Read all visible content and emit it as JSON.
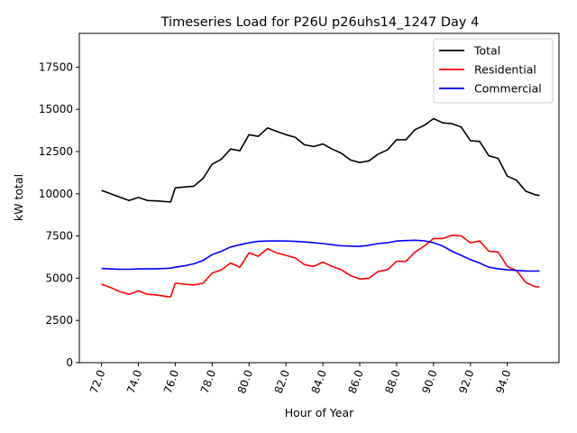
{
  "chart_data": {
    "type": "line",
    "title": "Timeseries Load for P26U p26uhs14_1247  Day 4",
    "xlabel": "Hour of Year",
    "ylabel": "kW total",
    "xlim": [
      70.8,
      96.8
    ],
    "ylim": [
      0,
      19500
    ],
    "xticks": [
      72,
      74,
      76,
      78,
      80,
      82,
      84,
      86,
      88,
      90,
      92,
      94
    ],
    "xtick_labels": [
      "72.0",
      "74.0",
      "76.0",
      "78.0",
      "80.0",
      "82.0",
      "84.0",
      "86.0",
      "88.0",
      "90.0",
      "92.0",
      "94.0"
    ],
    "yticks": [
      0,
      2500,
      5000,
      7500,
      10000,
      12500,
      15000,
      17500
    ],
    "ytick_labels": [
      "0",
      "2500",
      "5000",
      "7500",
      "10000",
      "12500",
      "15000",
      "17500"
    ],
    "grid": false,
    "legend_position": "top-right",
    "x": [
      72,
      72.5,
      73,
      73.5,
      74,
      74.5,
      75,
      75.5,
      75.75,
      76,
      76.5,
      77,
      77.5,
      78,
      78.5,
      79,
      79.5,
      80,
      80.5,
      81,
      81.5,
      82,
      82.5,
      83,
      83.5,
      84,
      84.5,
      85,
      85.5,
      86,
      86.5,
      87,
      87.5,
      88,
      88.5,
      89,
      89.5,
      90,
      90.5,
      91,
      91.5,
      92,
      92.5,
      93,
      93.5,
      94,
      94.5,
      95,
      95.5,
      95.75
    ],
    "series": [
      {
        "name": "Total",
        "color": "#000000",
        "values": [
          10200,
          10000,
          9800,
          9600,
          9780,
          9600,
          9580,
          9530,
          9520,
          10350,
          10400,
          10450,
          10900,
          11750,
          12050,
          12650,
          12550,
          13500,
          13400,
          13900,
          13700,
          13500,
          13350,
          12900,
          12800,
          12950,
          12650,
          12400,
          12000,
          11850,
          11950,
          12350,
          12600,
          13200,
          13200,
          13800,
          14050,
          14450,
          14200,
          14150,
          13950,
          13150,
          13100,
          12250,
          12100,
          11050,
          10800,
          10150,
          9950,
          9900
        ]
      },
      {
        "name": "Residential",
        "color": "#ff0000",
        "values": [
          4650,
          4450,
          4200,
          4050,
          4250,
          4050,
          4000,
          3920,
          3900,
          4700,
          4650,
          4600,
          4700,
          5300,
          5500,
          5900,
          5650,
          6500,
          6300,
          6750,
          6500,
          6350,
          6200,
          5800,
          5700,
          5950,
          5700,
          5500,
          5150,
          4950,
          5000,
          5400,
          5500,
          6000,
          6000,
          6550,
          6900,
          7350,
          7350,
          7550,
          7500,
          7100,
          7200,
          6600,
          6550,
          5700,
          5450,
          4750,
          4500,
          4480
        ]
      },
      {
        "name": "Commercial",
        "color": "#0000ff",
        "values": [
          5580,
          5550,
          5530,
          5530,
          5550,
          5550,
          5560,
          5580,
          5600,
          5650,
          5730,
          5850,
          6050,
          6400,
          6600,
          6850,
          6980,
          7100,
          7180,
          7200,
          7210,
          7200,
          7180,
          7150,
          7100,
          7050,
          6980,
          6920,
          6900,
          6880,
          6950,
          7050,
          7100,
          7200,
          7230,
          7250,
          7220,
          7100,
          6900,
          6600,
          6350,
          6100,
          5900,
          5650,
          5560,
          5500,
          5460,
          5430,
          5420,
          5430
        ]
      }
    ]
  }
}
